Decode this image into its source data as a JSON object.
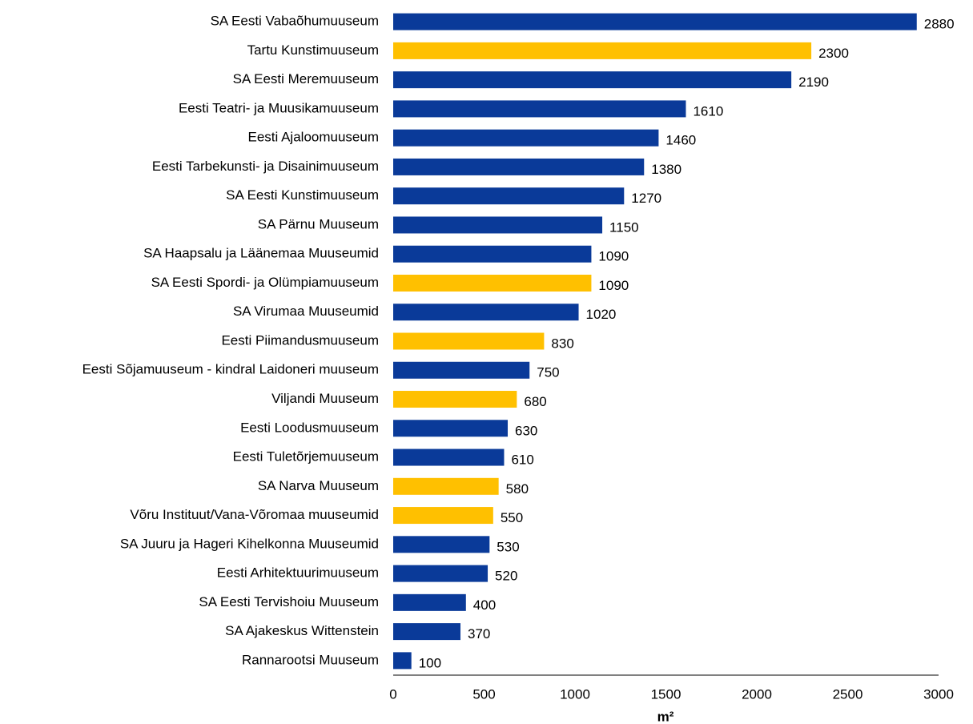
{
  "chart_data": {
    "type": "bar",
    "orientation": "horizontal",
    "xlabel": "m²",
    "categories": [
      "SA Eesti Vabaõhumuuseum",
      "Tartu Kunstimuuseum",
      "SA Eesti Meremuuseum",
      "Eesti Teatri- ja Muusikamuuseum",
      "Eesti Ajaloomuuseum",
      "Eesti Tarbekunsti- ja Disainimuuseum",
      "SA Eesti Kunstimuuseum",
      "SA Pärnu Muuseum",
      "SA Haapsalu ja Läänemaa Muuseumid",
      "SA Eesti Spordi- ja Olümpiamuuseum",
      "SA Virumaa Muuseumid",
      "Eesti Piimandusmuuseum",
      "Eesti Sõjamuuseum - kindral Laidoneri muuseum",
      "Viljandi Muuseum",
      "Eesti Loodusmuuseum",
      "Eesti Tuletõrjemuuseum",
      "SA Narva Muuseum",
      "Võru Instituut/Vana-Võromaa muuseumid",
      "SA Juuru ja Hageri Kihelkonna Muuseumid",
      "Eesti Arhitektuurimuuseum",
      "SA Eesti Tervishoiu Muuseum",
      "SA Ajakeskus Wittenstein",
      "Rannarootsi Muuseum"
    ],
    "values": [
      2880,
      2300,
      2190,
      1610,
      1460,
      1380,
      1270,
      1150,
      1090,
      1090,
      1020,
      830,
      750,
      680,
      630,
      610,
      580,
      550,
      530,
      520,
      400,
      370,
      100
    ],
    "colors": [
      "#0a3a99",
      "#ffc000",
      "#0a3a99",
      "#0a3a99",
      "#0a3a99",
      "#0a3a99",
      "#0a3a99",
      "#0a3a99",
      "#0a3a99",
      "#ffc000",
      "#0a3a99",
      "#ffc000",
      "#0a3a99",
      "#ffc000",
      "#0a3a99",
      "#0a3a99",
      "#ffc000",
      "#ffc000",
      "#0a3a99",
      "#0a3a99",
      "#0a3a99",
      "#0a3a99",
      "#0a3a99"
    ],
    "xlim": [
      0,
      3000
    ],
    "xticks": [
      0,
      500,
      1000,
      1500,
      2000,
      2500,
      3000
    ],
    "grid": false
  }
}
